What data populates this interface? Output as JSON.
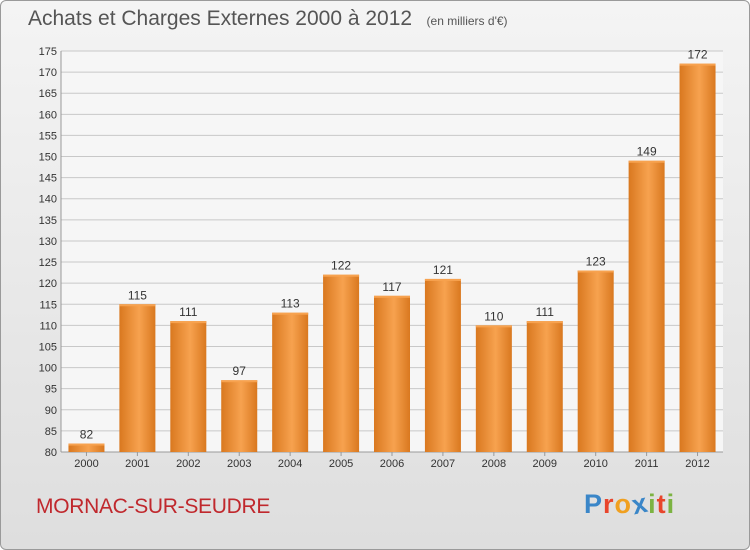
{
  "header": {
    "title": "Achats et Charges Externes 2000 à 2012",
    "unit": "(en milliers d'€)"
  },
  "footer": {
    "commune": "MORNAC-SUR-SEUDRE",
    "logo_letters": [
      {
        "char": "P",
        "color": "#3a86c8"
      },
      {
        "char": "r",
        "color": "#e8452c"
      },
      {
        "char": "o",
        "color": "#f0a020"
      },
      {
        "char": "x",
        "color": "#3a86c8"
      },
      {
        "char": "i",
        "color": "#7cb342"
      },
      {
        "char": "t",
        "color": "#e8452c"
      },
      {
        "char": "i",
        "color": "#7cb342"
      }
    ]
  },
  "colors": {
    "bar_light": "#f7a24f",
    "bar_dark": "#d9781f",
    "grid": "#c8c8c8",
    "axis_text": "#333333",
    "title": "#555555",
    "commune": "#c0282d"
  },
  "chart_data": {
    "type": "bar",
    "title": "Achats et Charges Externes 2000 à 2012",
    "subtitle": "(en milliers d'€)",
    "categories": [
      "2000",
      "2001",
      "2002",
      "2003",
      "2004",
      "2005",
      "2006",
      "2007",
      "2008",
      "2009",
      "2010",
      "2011",
      "2012"
    ],
    "values": [
      82,
      115,
      111,
      97,
      113,
      122,
      117,
      121,
      110,
      111,
      123,
      149,
      172
    ],
    "ylim": [
      80,
      175
    ],
    "yticks": [
      80,
      85,
      90,
      95,
      100,
      105,
      110,
      115,
      120,
      125,
      130,
      135,
      140,
      145,
      150,
      155,
      160,
      165,
      170,
      175
    ],
    "grid": true,
    "legend": "none"
  }
}
